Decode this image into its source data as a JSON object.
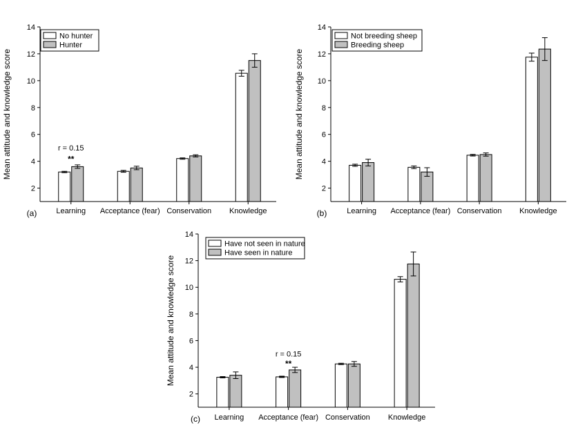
{
  "chart_data": [
    {
      "type": "bar",
      "panel_label": "(a)",
      "ylabel": "Mean attitude and knowledge score",
      "xlabel": "",
      "ylim": [
        1,
        14
      ],
      "yticks": [
        2,
        4,
        6,
        8,
        10,
        12,
        14
      ],
      "categories": [
        "Learning",
        "Acceptance (fear)",
        "Conservation",
        "Knowledge"
      ],
      "series": [
        {
          "name": "No hunter",
          "color": "#ffffff",
          "values": [
            3.2,
            3.25,
            4.2,
            10.55
          ],
          "errors": [
            0.05,
            0.07,
            0.05,
            0.22
          ]
        },
        {
          "name": "Hunter",
          "color": "#c0c0c0",
          "values": [
            3.6,
            3.5,
            4.4,
            11.5
          ],
          "errors": [
            0.13,
            0.13,
            0.08,
            0.5
          ]
        }
      ],
      "legend_position": "top-left",
      "annotations": [
        {
          "category_index": 0,
          "text": "r = 0.15",
          "y": 4.8
        },
        {
          "category_index": 0,
          "text": "**",
          "y": 3.95
        }
      ]
    },
    {
      "type": "bar",
      "panel_label": "(b)",
      "ylabel": "Mean attitude and knowledge score",
      "xlabel": "",
      "ylim": [
        1,
        14
      ],
      "yticks": [
        2,
        4,
        6,
        8,
        10,
        12,
        14
      ],
      "categories": [
        "Learning",
        "Acceptance (fear)",
        "Conservation",
        "Knowledge"
      ],
      "series": [
        {
          "name": "Not breeding sheep",
          "color": "#ffffff",
          "values": [
            3.7,
            3.55,
            4.45,
            11.75
          ],
          "errors": [
            0.08,
            0.1,
            0.06,
            0.3
          ]
        },
        {
          "name": "Breeding sheep",
          "color": "#c0c0c0",
          "values": [
            3.9,
            3.2,
            4.5,
            12.35
          ],
          "errors": [
            0.25,
            0.32,
            0.12,
            0.85
          ]
        }
      ],
      "legend_position": "top-left",
      "annotations": []
    },
    {
      "type": "bar",
      "panel_label": "(c)",
      "ylabel": "Mean attitude and knowledge score",
      "xlabel": "",
      "ylim": [
        1,
        14
      ],
      "yticks": [
        2,
        4,
        6,
        8,
        10,
        12,
        14
      ],
      "categories": [
        "Learning",
        "Acceptance (fear)",
        "Conservation",
        "Knowledge"
      ],
      "series": [
        {
          "name": "Have not seen in nature",
          "color": "#ffffff",
          "values": [
            3.25,
            3.28,
            4.25,
            10.6
          ],
          "errors": [
            0.05,
            0.05,
            0.05,
            0.2
          ]
        },
        {
          "name": "Have seen in nature",
          "color": "#c0c0c0",
          "values": [
            3.4,
            3.8,
            4.25,
            11.75
          ],
          "errors": [
            0.25,
            0.2,
            0.18,
            0.9
          ]
        }
      ],
      "legend_position": "top-left",
      "annotations": [
        {
          "category_index": 1,
          "text": "r = 0.15",
          "y": 4.8
        },
        {
          "category_index": 1,
          "text": "**",
          "y": 4.05
        }
      ]
    }
  ]
}
